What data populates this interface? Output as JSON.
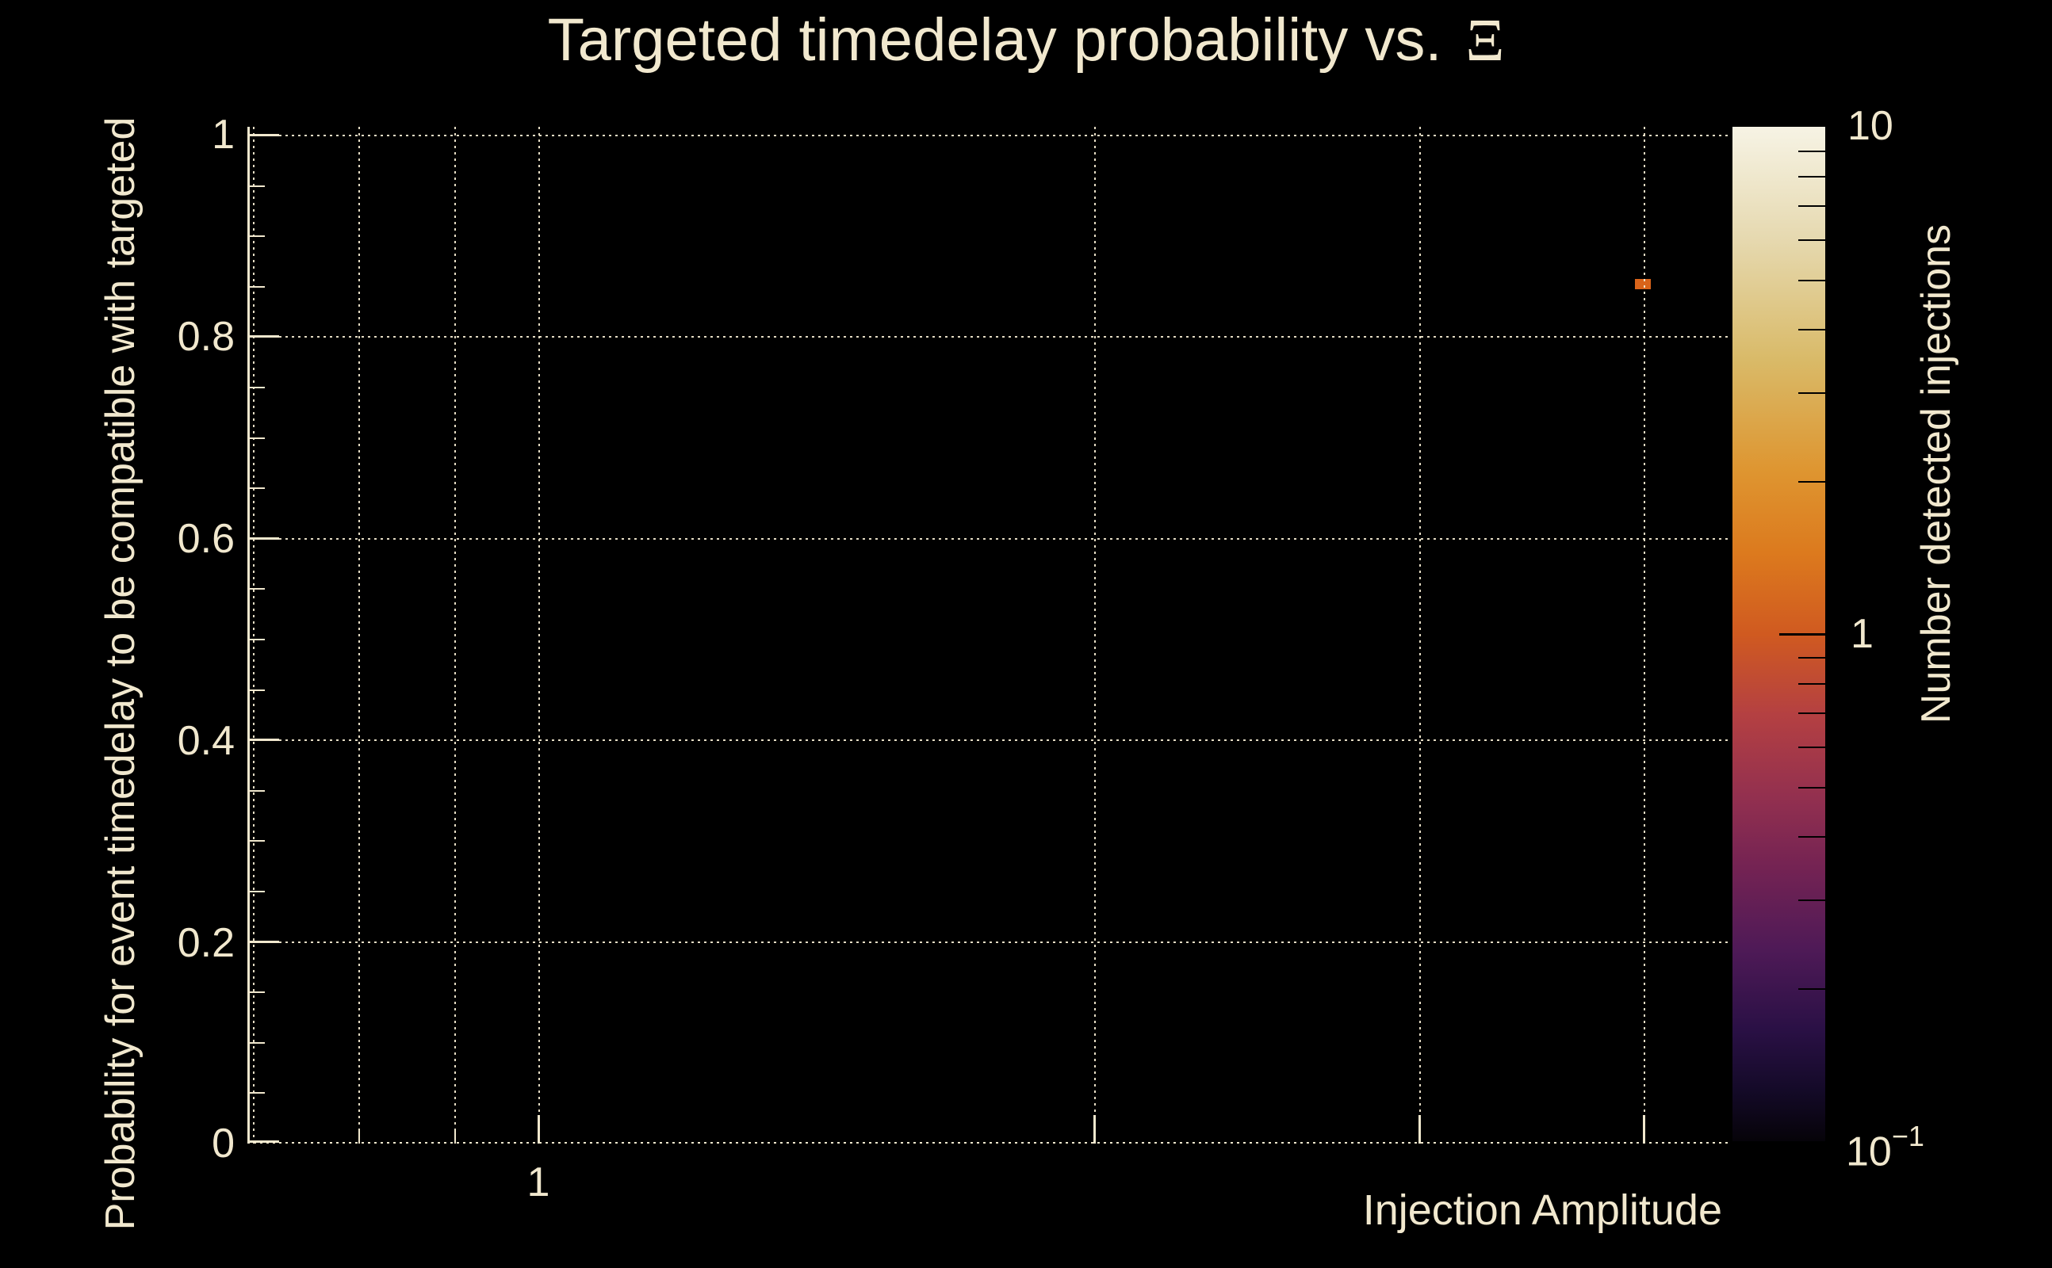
{
  "title": {
    "text": "Targeted timedelay probability vs.",
    "symbol": "Ξ"
  },
  "axes": {
    "x_label": "Injection Amplitude",
    "y_label": "Probability for event timedelay to be compatible with targeted",
    "x_tick_labels": [
      "1"
    ],
    "y_tick_labels": [
      "1",
      "0.8",
      "0.6",
      "0.4",
      "0.2",
      "0"
    ]
  },
  "colorbar": {
    "label": "Number detected injections",
    "top_label": "10",
    "mid_label": "1",
    "bottom_label_base": "10",
    "bottom_label_exp": "−1"
  },
  "chart_data": {
    "type": "scatter",
    "title": "Targeted timedelay probability vs. Ξ",
    "xlabel": "Injection Amplitude",
    "ylabel": "Probability for event timedelay to be compatible with targeted",
    "x_scale": "log",
    "y_scale": "linear",
    "xlim": [
      0.7,
      4.4
    ],
    "ylim": [
      0,
      1.01
    ],
    "x_ticks": [
      0.8,
      0.9,
      1,
      2,
      3,
      4
    ],
    "x_ticks_labeled": [
      1
    ],
    "y_ticks": [
      0,
      0.2,
      0.4,
      0.6,
      0.8,
      1
    ],
    "y_minor_tick_step": 0.05,
    "grid": true,
    "legend_position": "none",
    "points": [
      {
        "x": 4.0,
        "y": 0.85,
        "value": 1
      }
    ],
    "colorbar": {
      "label": "Number detected injections",
      "scale": "log",
      "range": [
        0.1,
        10
      ],
      "ticks_labeled": [
        10,
        1,
        0.1
      ],
      "palette": "inferno"
    },
    "colors": {
      "background": "#000000",
      "foreground": "#f1e8ce",
      "marker": "#d9641a"
    }
  }
}
